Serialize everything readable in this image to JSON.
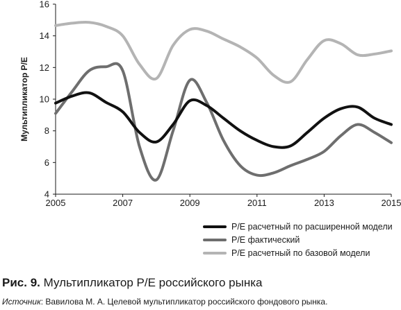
{
  "chart_data": {
    "type": "line",
    "ylabel": "Мультипликатор P/E",
    "xlim": [
      2005,
      2015
    ],
    "ylim": [
      4,
      16
    ],
    "xticks": [
      "2005",
      "2007",
      "2009",
      "2011",
      "2013",
      "2015"
    ],
    "yticks": [
      "4",
      "6",
      "8",
      "10",
      "12",
      "14",
      "16"
    ],
    "grid": false,
    "legend_position": "bottom-right",
    "series": [
      {
        "name": "P/E расчетный по расширенной модели",
        "color": "#111111",
        "x": [
          2005,
          2005.5,
          2006,
          2006.5,
          2007,
          2007.5,
          2008,
          2008.5,
          2009,
          2009.5,
          2010,
          2010.5,
          2011,
          2011.5,
          2012,
          2012.5,
          2013,
          2013.5,
          2014,
          2014.5,
          2015
        ],
        "y": [
          9.75,
          10.2,
          10.4,
          9.8,
          9.2,
          7.9,
          7.3,
          8.4,
          9.9,
          9.6,
          8.8,
          8.0,
          7.4,
          7.0,
          7.05,
          7.9,
          8.8,
          9.4,
          9.5,
          8.8,
          8.4
        ]
      },
      {
        "name": "P/E фактический",
        "color": "#6e6e6e",
        "x": [
          2005,
          2005.5,
          2006,
          2006.5,
          2007,
          2007.5,
          2008,
          2008.5,
          2009,
          2009.5,
          2010,
          2010.5,
          2011,
          2011.5,
          2012,
          2012.5,
          2013,
          2013.5,
          2014,
          2014.5,
          2015
        ],
        "y": [
          9.1,
          10.5,
          11.8,
          12.05,
          11.8,
          7.0,
          4.9,
          8.0,
          11.2,
          9.8,
          7.4,
          5.8,
          5.2,
          5.35,
          5.8,
          6.2,
          6.7,
          7.7,
          8.4,
          7.9,
          7.25
        ]
      },
      {
        "name": "P/E расчетный по базовой модели",
        "color": "#b4b4b4",
        "x": [
          2005,
          2005.5,
          2006,
          2006.5,
          2007,
          2007.5,
          2008,
          2008.5,
          2009,
          2009.5,
          2010,
          2010.5,
          2011,
          2011.5,
          2012,
          2012.5,
          2013,
          2013.5,
          2014,
          2014.5,
          2015
        ],
        "y": [
          14.65,
          14.8,
          14.85,
          14.6,
          14.0,
          12.2,
          11.3,
          13.4,
          14.4,
          14.3,
          13.8,
          13.3,
          12.6,
          11.5,
          11.1,
          12.5,
          13.7,
          13.5,
          12.8,
          12.85,
          13.05
        ]
      }
    ]
  },
  "caption": {
    "prefix": "Рис. 9.",
    "text": "Мультипликатор P/E российского рынка"
  },
  "source": {
    "prefix": "Источник",
    "text": ": Вавилова М. А. Целевой мультипликатор российского фондового рынка."
  }
}
